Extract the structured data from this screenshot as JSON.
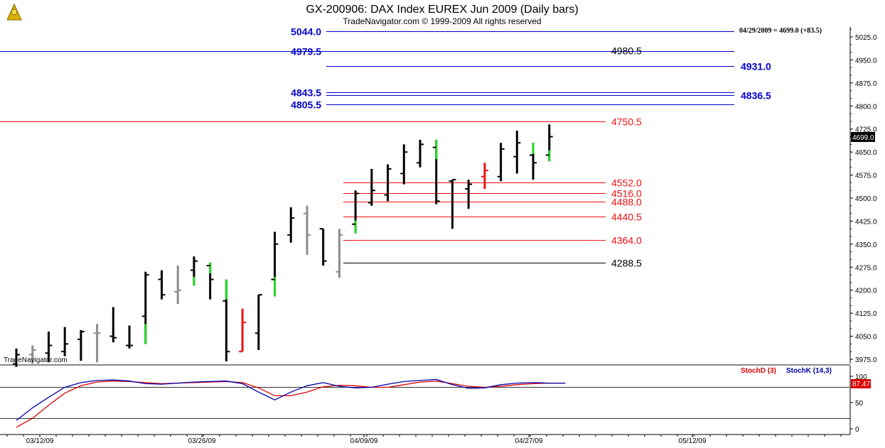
{
  "header": {
    "title": "GX-200906:  DAX Index EUREX Jun 2009  (Daily bars)",
    "subtitle": "TradeNavigator.com © 1999-2009 All rights reserved"
  },
  "info_readout": "04/29/2009 = 4699.0 (+83.5)",
  "watermark": "TradeNavigator.com",
  "colors": {
    "up": "#000000",
    "gray": "#8c8c8c",
    "green": "#22dd22",
    "red": "#ee1111",
    "blue_level": "#0000cc",
    "red_level": "#ee1111",
    "black_level": "#000000",
    "stoch_d": "#dd0000",
    "stoch_k": "#0000aa"
  },
  "chart_data": [
    {
      "type": "ohlc",
      "y_axis_ticks": [
        "5025.0",
        "4950.0",
        "4875.0",
        "4800.0",
        "4725.0",
        "4650.0",
        "4575.0",
        "4500.0",
        "4425.0",
        "4350.0",
        "4275.0",
        "4200.0",
        "4125.0",
        "4050.0",
        "3975.0"
      ],
      "ylim": [
        3955,
        5060
      ],
      "last_price_label": "4699.0",
      "x_axis_ticks": [
        "03/12/09",
        "03/26/09",
        "04/09/09",
        "04/27/09",
        "05/12/09"
      ],
      "bars": [
        {
          "date": "03/09/09",
          "o": 3960,
          "h": 4010,
          "l": 3950,
          "c": 3990,
          "color": "black"
        },
        {
          "date": "03/10/09",
          "o": 3990,
          "h": 4020,
          "l": 3960,
          "c": 4005,
          "color": "gray"
        },
        {
          "date": "03/11/09",
          "o": 3995,
          "h": 4065,
          "l": 3965,
          "c": 4020,
          "color": "black"
        },
        {
          "date": "03/12/09",
          "o": 4000,
          "h": 4080,
          "l": 3985,
          "c": 4025,
          "color": "black"
        },
        {
          "date": "03/13/09",
          "o": 4040,
          "h": 4070,
          "l": 3970,
          "c": 4065,
          "color": "black"
        },
        {
          "date": "03/16/09",
          "o": 4060,
          "h": 4090,
          "l": 3965,
          "c": 4060,
          "color": "gray"
        },
        {
          "date": "03/17/09",
          "o": 4050,
          "h": 4145,
          "l": 4030,
          "c": 4045,
          "color": "black"
        },
        {
          "date": "03/18/09",
          "o": 4020,
          "h": 4085,
          "l": 4010,
          "c": 4020,
          "color": "black"
        },
        {
          "date": "03/19/09",
          "o": 4115,
          "h": 4260,
          "l": 4025,
          "c": 4250,
          "color": "black",
          "low_color": "green"
        },
        {
          "date": "03/20/09",
          "o": 4235,
          "h": 4265,
          "l": 4170,
          "c": 4185,
          "color": "black"
        },
        {
          "date": "03/23/09",
          "o": 4195,
          "h": 4280,
          "l": 4155,
          "c": 4200,
          "color": "gray"
        },
        {
          "date": "03/24/09",
          "o": 4265,
          "h": 4310,
          "l": 4215,
          "c": 4295,
          "color": "black",
          "low_color": "green"
        },
        {
          "date": "03/25/09",
          "o": 4280,
          "h": 4290,
          "l": 4170,
          "c": 4235,
          "color": "black",
          "high_color": "green"
        },
        {
          "date": "03/26/09",
          "o": 4165,
          "h": 4235,
          "l": 3968,
          "c": 4000,
          "color": "black",
          "high_color": "green"
        },
        {
          "date": "03/27/09",
          "o": 4000,
          "h": 4140,
          "l": 4000,
          "c": 4095,
          "color": "red"
        },
        {
          "date": "03/30/09",
          "o": 4060,
          "h": 4185,
          "l": 4005,
          "c": 4185,
          "color": "black"
        },
        {
          "date": "03/31/09",
          "o": 4235,
          "h": 4390,
          "l": 4180,
          "c": 4350,
          "color": "black",
          "low_color": "green"
        },
        {
          "date": "04/01/09",
          "o": 4380,
          "h": 4470,
          "l": 4355,
          "c": 4435,
          "color": "black"
        },
        {
          "date": "04/02/09",
          "o": 4450,
          "h": 4475,
          "l": 4315,
          "c": 4380,
          "color": "gray"
        },
        {
          "date": "04/03/09",
          "o": 4400,
          "h": 4400,
          "l": 4280,
          "c": 4295,
          "color": "black"
        },
        {
          "date": "04/06/09",
          "o": 4260,
          "h": 4400,
          "l": 4240,
          "c": 4380,
          "color": "gray"
        },
        {
          "date": "04/07/09",
          "o": 4415,
          "h": 4525,
          "l": 4385,
          "c": 4515,
          "color": "black",
          "low_color": "green"
        },
        {
          "date": "04/08/09",
          "o": 4485,
          "h": 4595,
          "l": 4475,
          "c": 4525,
          "color": "black"
        },
        {
          "date": "04/09/09",
          "o": 4510,
          "h": 4610,
          "l": 4490,
          "c": 4595,
          "color": "black"
        },
        {
          "date": "04/14/09",
          "o": 4580,
          "h": 4675,
          "l": 4545,
          "c": 4650,
          "color": "black"
        },
        {
          "date": "04/15/09",
          "o": 4615,
          "h": 4690,
          "l": 4600,
          "c": 4675,
          "color": "black"
        },
        {
          "date": "04/16/09",
          "o": 4665,
          "h": 4690,
          "l": 4480,
          "c": 4490,
          "color": "black",
          "high_color": "green"
        },
        {
          "date": "04/17/09",
          "o": 4555,
          "h": 4560,
          "l": 4400,
          "c": 4560,
          "color": "black"
        },
        {
          "date": "04/20/09",
          "o": 4530,
          "h": 4560,
          "l": 4465,
          "c": 4545,
          "color": "black"
        },
        {
          "date": "04/21/09",
          "o": 4570,
          "h": 4615,
          "l": 4530,
          "c": 4590,
          "color": "red"
        },
        {
          "date": "04/22/09",
          "o": 4570,
          "h": 4680,
          "l": 4555,
          "c": 4660,
          "color": "black"
        },
        {
          "date": "04/23/09",
          "o": 4635,
          "h": 4720,
          "l": 4580,
          "c": 4680,
          "color": "black"
        },
        {
          "date": "04/24/09",
          "o": 4640,
          "h": 4680,
          "l": 4560,
          "c": 4615,
          "color": "black",
          "high_color": "green"
        },
        {
          "date": "04/27/09",
          "o": 4640,
          "h": 4740,
          "l": 4620,
          "c": 4700,
          "color": "black",
          "low_color": "green"
        }
      ],
      "levels": [
        {
          "value": 5044.0,
          "label": "5044.0",
          "color": "blue",
          "side": "left"
        },
        {
          "value": 4979.5,
          "label": "4979.5",
          "color": "blue",
          "side": "left"
        },
        {
          "value": 4980.5,
          "label": "4980.5",
          "color": "black",
          "side": "right"
        },
        {
          "value": 4931.0,
          "label": "4931.0",
          "color": "blue",
          "side": "far"
        },
        {
          "value": 4843.5,
          "label": "4843.5",
          "color": "blue",
          "side": "left"
        },
        {
          "value": 4836.5,
          "label": "4836.5",
          "color": "blue",
          "side": "far"
        },
        {
          "value": 4805.5,
          "label": "4805.5",
          "color": "blue",
          "side": "left"
        },
        {
          "value": 4750.5,
          "label": "4750.5",
          "color": "red",
          "side": "right"
        },
        {
          "value": 4552.0,
          "label": "4552.0",
          "color": "red",
          "side": "right"
        },
        {
          "value": 4516.0,
          "label": "4516.0",
          "color": "red",
          "side": "right"
        },
        {
          "value": 4488.0,
          "label": "4488.0",
          "color": "red",
          "side": "right"
        },
        {
          "value": 4440.5,
          "label": "4440.5",
          "color": "red",
          "side": "right"
        },
        {
          "value": 4364.0,
          "label": "4364.0",
          "color": "red",
          "side": "right"
        },
        {
          "value": 4288.5,
          "label": "4288.5",
          "color": "black",
          "side": "right"
        }
      ]
    },
    {
      "type": "line",
      "legend": [
        "StochD (3)",
        "StochK (14,3)"
      ],
      "y_axis_ticks": [
        "100",
        "50",
        "0"
      ],
      "ylim": [
        -5,
        105
      ],
      "last_value_label": "87.47",
      "reference_lines": [
        80,
        20
      ],
      "series": [
        {
          "name": "StochD (3)",
          "values": [
            3,
            20,
            45,
            68,
            82,
            89,
            91,
            90,
            88,
            86,
            87,
            88,
            89,
            90,
            88,
            78,
            63,
            63,
            70,
            80,
            83,
            82,
            79,
            79,
            84,
            89,
            91,
            86,
            81,
            79,
            81,
            84,
            86,
            87,
            87
          ]
        },
        {
          "name": "StochK (14,3)",
          "values": [
            16,
            40,
            60,
            79,
            88,
            92,
            93,
            91,
            86,
            85,
            87,
            89,
            90,
            91,
            86,
            70,
            55,
            70,
            82,
            88,
            81,
            78,
            79,
            85,
            90,
            92,
            94,
            84,
            77,
            78,
            84,
            87,
            88,
            87,
            87
          ]
        }
      ]
    }
  ]
}
